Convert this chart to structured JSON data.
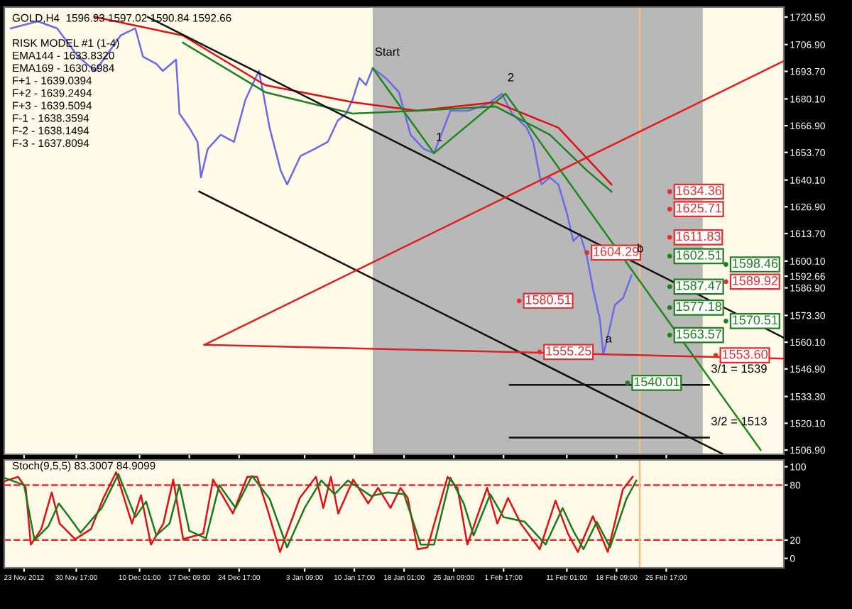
{
  "chart_data": [
    {
      "type": "line",
      "title": "GOLD,H4  1596.93 1597.02 1590.84 1592.66",
      "annotations": [
        "RISK MODEL #1 (1-4)",
        "EMA144 - 1633.8320",
        "EMA169 - 1630.6984",
        "F+1 - 1639.0394",
        "F+2 - 1639.2494",
        "F+3 - 1639.5094",
        "F-1 - 1638.3594",
        "F-2 - 1638.1494",
        "F-3 - 1637.8094",
        {
          "text": "Start",
          "x": "2013-01-13T10:00",
          "y": 1695.3
        },
        {
          "text": "1",
          "x": "2013-01-22T11:00",
          "y": 1653.3
        },
        {
          "text": "2",
          "x": "2013-02-02T00:00",
          "y": 1682.7
        },
        {
          "text": "a",
          "x": "2013-02-16T10:00",
          "y": 1553.9
        },
        {
          "text": "b",
          "x": "2013-02-21T02:00",
          "y": 1598.4
        },
        {
          "text": "3/1 = 1539",
          "x": "2013-03-04T00:00",
          "y": 1539
        },
        {
          "text": "3/2 = 1513",
          "x": "2013-03-04T00:00",
          "y": 1513
        }
      ],
      "xlim": [
        "2012-11-20T02:00",
        "2013-03-15T01:00"
      ],
      "ylim": [
        1504.8,
        1725.4
      ],
      "xticks": [
        {
          "value": "2012-11-23T00:00",
          "label": null
        },
        {
          "value": "2012-11-30T17:00",
          "label": null
        },
        {
          "value": "2012-12-10T01:00",
          "label": null
        },
        {
          "value": "2012-12-17T09:00",
          "label": null
        },
        {
          "value": "2012-12-24T17:00",
          "label": null
        },
        {
          "value": "2013-01-03T09:00",
          "label": null
        },
        {
          "value": "2013-01-10T17:00",
          "label": null
        },
        {
          "value": "2013-01-18T01:00",
          "label": null
        },
        {
          "value": "2013-01-25T09:00",
          "label": null
        },
        {
          "value": "2013-02-01T17:00",
          "label": null
        },
        {
          "value": "2013-02-11T01:00",
          "label": null
        },
        {
          "value": "2013-02-18T09:00",
          "label": null
        },
        {
          "value": "2013-02-25T17:00",
          "label": null
        }
      ],
      "yticks": [
        {
          "value": 1506.9,
          "label": "1506.90"
        },
        {
          "value": 1520.1,
          "label": "1520.10"
        },
        {
          "value": 1533.3,
          "label": "1533.30"
        },
        {
          "value": 1546.9,
          "label": "1546.90"
        },
        {
          "value": 1560.1,
          "label": "1560.10"
        },
        {
          "value": 1573.3,
          "label": "1573.30"
        },
        {
          "value": 1586.9,
          "label": "1586.90"
        },
        {
          "value": 1592.66,
          "label": "1592.66"
        },
        {
          "value": 1600.1,
          "label": "1600.10"
        },
        {
          "value": 1613.7,
          "label": "1613.70"
        },
        {
          "value": 1626.9,
          "label": "1626.90"
        },
        {
          "value": 1640.1,
          "label": "1640.10"
        },
        {
          "value": 1653.7,
          "label": "1653.70"
        },
        {
          "value": 1666.9,
          "label": "1666.90"
        },
        {
          "value": 1680.1,
          "label": "1680.10"
        },
        {
          "value": 1693.7,
          "label": "1693.70"
        },
        {
          "value": 1706.9,
          "label": "1706.90"
        },
        {
          "value": 1720.5,
          "label": "1720.50"
        }
      ],
      "tick_labels": "y",
      "bands": [
        {
          "axis": "x",
          "from": "2013-01-13T10:00",
          "to": "2013-03-03T02:00",
          "color": "#b8b8b8"
        }
      ],
      "ref_lines": [
        {
          "axis": "x",
          "value": "2013-02-21T19:00",
          "color": "#f0c080"
        }
      ],
      "series": [
        {
          "color": "#6a6ae8",
          "x": [
            "2012-11-21T01:00",
            "2012-11-25T01:00",
            "2012-11-27T21:00",
            "2012-12-01T00:00",
            "2012-12-03T12:00",
            "2012-12-07T06:00",
            "2012-12-09T10:00",
            "2012-12-10T13:00",
            "2012-12-12T12:00",
            "2012-12-13T11:00",
            "2012-12-15T10:00",
            "2012-12-15T22:00",
            "2012-12-17T09:00",
            "2012-12-18T14:00",
            "2012-12-19T02:00",
            "2012-12-20T02:00",
            "2012-12-22T00:00",
            "2012-12-23T23:00",
            "2012-12-25T16:00",
            "2012-12-27T15:00",
            "2012-12-28T06:00",
            "2012-12-29T05:00",
            "2012-12-30T20:00",
            "2012-12-31T19:00",
            "2013-01-02T18:00",
            "2013-01-04T20:00",
            "2013-01-06T19:00",
            "2013-01-08T06:00",
            "2013-01-09T12:00",
            "2013-01-10T11:00",
            "2013-01-11T11:00",
            "2013-01-12T10:00",
            "2013-01-13T10:00",
            "2013-01-15T08:00",
            "2013-01-17T07:00",
            "2013-01-19T00:00",
            "2013-01-20T23:00",
            "2013-01-22T11:00",
            "2013-01-24T21:00",
            "2013-01-27T14:00",
            "2013-01-30T12:00",
            "2013-02-01T11:00",
            "2013-02-02T23:00",
            "2013-02-05T03:00",
            "2013-02-06T02:00",
            "2013-02-07T07:00",
            "2013-02-08T13:00",
            "2013-02-09T19:00",
            "2013-02-11T01:00",
            "2013-02-12T00:00",
            "2013-02-13T00:00",
            "2013-02-13T23:00",
            "2013-02-14T23:00",
            "2013-02-15T22:00",
            "2013-02-16T10:00",
            "2013-02-17T10:00",
            "2013-02-18T03:00",
            "2013-02-19T08:00",
            "2013-02-20T14:00"
          ],
          "values": [
            1714.9,
            1718.4,
            1714.9,
            1700.9,
            1693.9,
            1711.4,
            1714.9,
            1700.9,
            1697.4,
            1693.9,
            1699.5,
            1672.9,
            1665.9,
            1658.9,
            1641.4,
            1655.4,
            1662.4,
            1658.9,
            1679.9,
            1693.9,
            1683.4,
            1665.9,
            1644.9,
            1637.9,
            1651.9,
            1655.4,
            1658.9,
            1669.4,
            1672.9,
            1679.9,
            1690.4,
            1686.9,
            1695.3,
            1690.4,
            1683.4,
            1662.4,
            1655.4,
            1653.3,
            1674.3,
            1674.3,
            1677.8,
            1682.7,
            1672.9,
            1665.9,
            1658.9,
            1637.9,
            1641.4,
            1637.9,
            1623.9,
            1610.0,
            1613.4,
            1603.0,
            1585.4,
            1571.4,
            1553.9,
            1567.9,
            1578.4,
            1581.9,
            1593.1
          ]
        },
        {
          "color": "#e01010",
          "x": [
            "2012-12-03T12:00",
            "2012-12-16T10:00",
            "2012-12-28T14:00",
            "2013-01-10T11:00",
            "2013-01-20T00:00",
            "2013-01-31T12:00",
            "2013-02-09T19:00",
            "2013-02-17T15:00"
          ],
          "values": [
            1720.5,
            1711.4,
            1686.9,
            1678.5,
            1674.3,
            1678.5,
            1665.9,
            1637.9
          ]
        },
        {
          "color": "#208020",
          "x": [
            "2012-12-16T10:00",
            "2012-12-28T14:00",
            "2013-01-10T11:00",
            "2013-01-20T00:00",
            "2013-01-31T12:00",
            "2013-02-08T13:00",
            "2013-02-13T23:00",
            "2013-02-17T15:00"
          ],
          "values": [
            1707.9,
            1683.4,
            1672.9,
            1674.3,
            1676.4,
            1662.4,
            1644.9,
            1634.4
          ]
        },
        {
          "color": "#1a8a1a",
          "x": [
            "2013-01-13T10:00",
            "2013-01-22T11:00",
            "2013-02-02T00:00",
            "2013-03-11T15:00"
          ],
          "values": [
            1695.3,
            1653.3,
            1682.7,
            1506.9
          ]
        },
        {
          "color": "#101010",
          "x": [
            "2012-12-11T06:00",
            "2013-03-15T01:00"
          ],
          "values": [
            1720.5,
            1562.3
          ]
        },
        {
          "color": "#101010",
          "x": [
            "2012-12-18T20:00",
            "2013-03-06T00:00"
          ],
          "values": [
            1634.4,
            1505.0
          ]
        },
        {
          "color": "#e02020",
          "x": [
            "2012-12-19T14:00",
            "2013-03-15T01:00"
          ],
          "values": [
            1558.8,
            1552.0
          ]
        },
        {
          "color": "#e02020",
          "x": [
            "2012-12-19T14:00",
            "2013-03-15T01:00"
          ],
          "values": [
            1558.8,
            1698.8
          ]
        },
        {
          "color": "#101010",
          "x": [
            "2013-02-02T15:00",
            "2013-03-04T00:00"
          ],
          "values": [
            1539,
            1539
          ]
        },
        {
          "color": "#101010",
          "x": [
            "2013-02-02T15:00",
            "2013-03-04T00:00"
          ],
          "values": [
            1513,
            1513
          ]
        },
        {
          "type": "scatter",
          "color": "#e03030",
          "x": [
            "2013-02-26T05:00",
            "2013-02-26T05:00",
            "2013-02-26T05:00",
            "2013-02-14T00:00",
            "2013-03-06T12:00",
            "2013-02-04T00:00",
            "2013-02-07T00:00",
            "2013-03-05T00:00"
          ],
          "values": [
            1634.36,
            1625.71,
            1611.83,
            1604.29,
            1589.92,
            1580.51,
            1555.25,
            1553.6
          ],
          "value_labels": [
            "1634.36",
            "1625.71",
            "1611.83",
            "1604.29",
            "1589.92",
            "1580.51",
            "1555.25",
            "1553.60"
          ]
        },
        {
          "type": "scatter",
          "color": "#208020",
          "x": [
            "2013-02-26T05:00",
            "2013-03-06T12:00",
            "2013-02-26T05:00",
            "2013-02-26T05:00",
            "2013-03-06T12:00",
            "2013-02-26T05:00",
            "2013-02-20T00:00"
          ],
          "values": [
            1602.51,
            1598.46,
            1587.47,
            1577.18,
            1570.51,
            1563.57,
            1540.01
          ],
          "value_labels": [
            "1602.51",
            "1598.46",
            "1587.47",
            "1577.18",
            "1570.51",
            "1563.57",
            "1540.01"
          ]
        }
      ]
    },
    {
      "type": "line",
      "title": "Stoch(9,5,5) 83.3007 84.9099",
      "xlim": [
        "2012-11-20T02:00",
        "2013-03-15T01:00"
      ],
      "ylim": [
        -10.3,
        107.4
      ],
      "xticks": [
        {
          "value": "2012-11-23T00:00",
          "label": "23 Nov 2012"
        },
        {
          "value": "2012-11-30T17:00",
          "label": "30 Nov 17:00"
        },
        {
          "value": "2012-12-10T01:00",
          "label": "10 Dec 01:00"
        },
        {
          "value": "2012-12-17T09:00",
          "label": "17 Dec 09:00"
        },
        {
          "value": "2012-12-24T17:00",
          "label": "24 Dec 17:00"
        },
        {
          "value": "2013-01-03T09:00",
          "label": "3 Jan 09:00"
        },
        {
          "value": "2013-01-10T17:00",
          "label": "10 Jan 17:00"
        },
        {
          "value": "2013-01-18T01:00",
          "label": "18 Jan 01:00"
        },
        {
          "value": "2013-01-25T09:00",
          "label": "25 Jan 09:00"
        },
        {
          "value": "2013-02-01T17:00",
          "label": "1 Feb 17:00"
        },
        {
          "value": "2013-02-11T01:00",
          "label": "11 Feb 01:00"
        },
        {
          "value": "2013-02-18T09:00",
          "label": "18 Feb 09:00"
        },
        {
          "value": "2013-02-25T17:00",
          "label": "25 Feb 17:00"
        }
      ],
      "yticks": [
        0,
        20,
        80,
        100
      ],
      "ref_lines": [
        {
          "axis": "y",
          "value": 20,
          "color": "#e03030",
          "line_style": "dashed"
        },
        {
          "axis": "y",
          "value": 80,
          "color": "#e03030",
          "line_style": "dashed"
        },
        {
          "axis": "x",
          "value": "2013-02-21T19:00",
          "color": "#f0c080"
        }
      ],
      "series": [
        {
          "color": "#e01010",
          "x": [
            "2012-11-20T02:00",
            "2012-11-22T03:00",
            "2012-11-23T06:00",
            "2012-11-24T00:00",
            "2012-11-25T13:00",
            "2012-11-27T02:00",
            "2012-11-28T06:00",
            "2012-11-30T13:00",
            "2012-12-02T21:00",
            "2012-12-04T17:00",
            "2012-12-06T14:00",
            "2012-12-08T22:00",
            "2012-12-10T06:00",
            "2012-12-11T17:00",
            "2012-12-13T13:00",
            "2012-12-15T00:00",
            "2012-12-16T11:00",
            "2012-12-19T10:00",
            "2012-12-20T21:00",
            "2012-12-23T19:00",
            "2012-12-25T22:00",
            "2012-12-27T09:00",
            "2012-12-28T20:00",
            "2012-12-30T18:00",
            "2013-01-02T16:00",
            "2013-01-05T01:00",
            "2013-01-06T03:00",
            "2013-01-07T06:00",
            "2013-01-08T08:00",
            "2013-01-10T13:00",
            "2013-01-12T18:00",
            "2013-01-14T05:00",
            "2013-01-16T01:00",
            "2013-01-17T12:00",
            "2013-01-18T14:00",
            "2013-01-20T01:00",
            "2013-01-21T12:00",
            "2013-01-24T11:00",
            "2013-01-25T22:00",
            "2013-01-27T09:00",
            "2013-01-28T20:00",
            "2013-01-30T07:00",
            "2013-01-31T19:00",
            "2013-02-02T09:00",
            "2013-02-04T06:00",
            "2013-02-07T01:00",
            "2013-02-09T09:00",
            "2013-02-11T05:00",
            "2013-02-12T16:00",
            "2013-02-14T21:00",
            "2013-02-17T02:00",
            "2013-02-19T07:00",
            "2013-02-20T18:00"
          ],
          "values": [
            84,
            89,
            77,
            15,
            32,
            72,
            38,
            21,
            32,
            66,
            94,
            38,
            69,
            15,
            38,
            86,
            21,
            27,
            86,
            49,
            89,
            89,
            55,
            7,
            66,
            89,
            55,
            89,
            49,
            86,
            60,
            77,
            55,
            77,
            66,
            10,
            12,
            89,
            77,
            15,
            46,
            77,
            38,
            66,
            38,
            10,
            63,
            27,
            7,
            46,
            7,
            75,
            89
          ]
        },
        {
          "color": "#1a7a1a",
          "x": [
            "2012-11-20T02:00",
            "2012-11-23T00:00",
            "2012-11-24T13:00",
            "2012-11-26T14:00",
            "2012-11-28T03:00",
            "2012-11-29T16:00",
            "2012-12-01T08:00",
            "2012-12-04T11:00",
            "2012-12-06T22:00",
            "2012-12-09T10:00",
            "2012-12-11T00:00",
            "2012-12-12T12:00",
            "2012-12-14T11:00",
            "2012-12-15T22:00",
            "2012-12-17T09:00",
            "2012-12-19T20:00",
            "2012-12-21T19:00",
            "2012-12-24T05:00",
            "2012-12-26T15:00",
            "2012-12-29T05:00",
            "2012-12-31T19:00",
            "2013-01-03T09:00",
            "2013-01-05T20:00",
            "2013-01-07T19:00",
            "2013-01-09T18:00",
            "2013-01-13T04:00",
            "2013-01-15T14:00",
            "2013-01-18T01:00",
            "2013-01-20T12:00",
            "2013-01-22T11:00",
            "2013-01-24T21:00",
            "2013-01-26T20:00",
            "2013-01-28T07:00",
            "2013-01-30T18:00",
            "2013-02-01T17:00",
            "2013-02-04T20:00",
            "2013-02-07T22:00",
            "2013-02-10T10:00",
            "2013-02-12T00:00",
            "2013-02-13T12:00",
            "2013-02-15T11:00",
            "2013-02-17T10:00",
            "2013-02-19T20:00",
            "2013-02-21T07:00"
          ],
          "values": [
            88,
            80,
            20,
            35,
            60,
            45,
            28,
            55,
            92,
            45,
            62,
            25,
            38,
            80,
            30,
            22,
            80,
            55,
            90,
            65,
            12,
            55,
            85,
            70,
            85,
            68,
            72,
            70,
            15,
            15,
            88,
            60,
            25,
            70,
            45,
            40,
            15,
            55,
            30,
            10,
            40,
            12,
            65,
            85
          ]
        }
      ]
    }
  ]
}
